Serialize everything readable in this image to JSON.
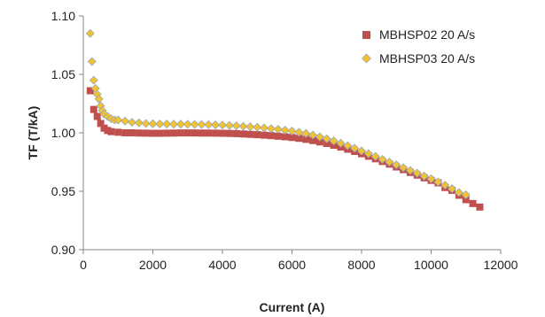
{
  "chart_data": {
    "type": "scatter",
    "title": "",
    "xlabel": "Current (A)",
    "ylabel": "TF (T/kA)",
    "xlim": [
      0,
      12000
    ],
    "ylim": [
      0.9,
      1.1
    ],
    "x_ticks": [
      0,
      2000,
      4000,
      6000,
      8000,
      10000,
      12000
    ],
    "x_tick_labels": [
      "0",
      "2000",
      "4000",
      "6000",
      "8000",
      "10000",
      "12000"
    ],
    "y_ticks": [
      0.9,
      0.95,
      1.0,
      1.05,
      1.1
    ],
    "y_tick_labels": [
      "0.90",
      "0.95",
      "1.00",
      "1.05",
      "1.10"
    ],
    "grid": false,
    "legend": "top-right",
    "series": [
      {
        "name": "MBHSP02 20 A/s",
        "marker": "square",
        "color": "#c0504d",
        "points": [
          [
            200,
            1.036
          ],
          [
            300,
            1.02
          ],
          [
            400,
            1.014
          ],
          [
            500,
            1.008
          ],
          [
            600,
            1.004
          ],
          [
            700,
            1.002
          ],
          [
            800,
            1.001
          ],
          [
            1000,
            1.0005
          ],
          [
            1200,
            1.0
          ],
          [
            1400,
            1.0
          ],
          [
            1600,
            0.9998
          ],
          [
            1800,
            0.9997
          ],
          [
            2000,
            0.9996
          ],
          [
            2200,
            0.9996
          ],
          [
            2400,
            0.9997
          ],
          [
            2600,
            0.9998
          ],
          [
            2800,
            0.9999
          ],
          [
            3000,
            0.9999
          ],
          [
            3200,
            0.9999
          ],
          [
            3400,
            0.9998
          ],
          [
            3600,
            0.9998
          ],
          [
            3800,
            0.9997
          ],
          [
            4000,
            0.9996
          ],
          [
            4200,
            0.9995
          ],
          [
            4400,
            0.9993
          ],
          [
            4600,
            0.999
          ],
          [
            4800,
            0.9987
          ],
          [
            5000,
            0.9984
          ],
          [
            5200,
            0.998
          ],
          [
            5400,
            0.9976
          ],
          [
            5600,
            0.9971
          ],
          [
            5800,
            0.9966
          ],
          [
            6000,
            0.996
          ],
          [
            6200,
            0.9953
          ],
          [
            6400,
            0.9944
          ],
          [
            6600,
            0.9934
          ],
          [
            6800,
            0.9922
          ],
          [
            7000,
            0.9909
          ],
          [
            7200,
            0.9894
          ],
          [
            7400,
            0.9878
          ],
          [
            7600,
            0.986
          ],
          [
            7800,
            0.9841
          ],
          [
            8000,
            0.9821
          ],
          [
            8200,
            0.98
          ],
          [
            8400,
            0.9778
          ],
          [
            8600,
            0.9755
          ],
          [
            8800,
            0.9732
          ],
          [
            9000,
            0.9708
          ],
          [
            9200,
            0.9685
          ],
          [
            9400,
            0.9661
          ],
          [
            9600,
            0.9638
          ],
          [
            9800,
            0.9615
          ],
          [
            10000,
            0.9593
          ],
          [
            10200,
            0.9572
          ],
          [
            10400,
            0.9532
          ],
          [
            10600,
            0.9508
          ],
          [
            10800,
            0.9466
          ],
          [
            11000,
            0.9428
          ],
          [
            11200,
            0.9395
          ],
          [
            11400,
            0.9365
          ]
        ]
      },
      {
        "name": "MBHSP03 20 A/s",
        "marker": "diamond",
        "color": "#f2c230",
        "points": [
          [
            200,
            1.085
          ],
          [
            250,
            1.061
          ],
          [
            300,
            1.045
          ],
          [
            350,
            1.038
          ],
          [
            400,
            1.033
          ],
          [
            450,
            1.029
          ],
          [
            500,
            1.023
          ],
          [
            550,
            1.019
          ],
          [
            600,
            1.016
          ],
          [
            700,
            1.014
          ],
          [
            800,
            1.012
          ],
          [
            900,
            1.011
          ],
          [
            1000,
            1.011
          ],
          [
            1200,
            1.01
          ],
          [
            1400,
            1.009
          ],
          [
            1600,
            1.0085
          ],
          [
            1800,
            1.008
          ],
          [
            2000,
            1.0078
          ],
          [
            2200,
            1.0076
          ],
          [
            2400,
            1.0075
          ],
          [
            2600,
            1.0074
          ],
          [
            2800,
            1.0074
          ],
          [
            3000,
            1.0073
          ],
          [
            3200,
            1.0072
          ],
          [
            3400,
            1.0071
          ],
          [
            3600,
            1.007
          ],
          [
            3800,
            1.0068
          ],
          [
            4000,
            1.0066
          ],
          [
            4200,
            1.0063
          ],
          [
            4400,
            1.006
          ],
          [
            4600,
            1.0056
          ],
          [
            4800,
            1.0052
          ],
          [
            5000,
            1.0047
          ],
          [
            5200,
            1.0042
          ],
          [
            5400,
            1.0036
          ],
          [
            5600,
            1.003
          ],
          [
            5800,
            1.0023
          ],
          [
            6000,
            1.0015
          ],
          [
            6200,
            1.0005
          ],
          [
            6400,
            0.9994
          ],
          [
            6600,
            0.9981
          ],
          [
            6800,
            0.9966
          ],
          [
            7000,
            0.9949
          ],
          [
            7200,
            0.9931
          ],
          [
            7400,
            0.9911
          ],
          [
            7600,
            0.989
          ],
          [
            7800,
            0.9868
          ],
          [
            8000,
            0.9845
          ],
          [
            8200,
            0.9822
          ],
          [
            8400,
            0.9798
          ],
          [
            8600,
            0.9774
          ],
          [
            8800,
            0.975
          ],
          [
            9000,
            0.9726
          ],
          [
            9200,
            0.9702
          ],
          [
            9400,
            0.9678
          ],
          [
            9600,
            0.9654
          ],
          [
            9800,
            0.963
          ],
          [
            10000,
            0.9606
          ],
          [
            10200,
            0.958
          ],
          [
            10400,
            0.9552
          ],
          [
            10600,
            0.9522
          ],
          [
            10800,
            0.949
          ],
          [
            11000,
            0.947
          ]
        ]
      }
    ]
  }
}
